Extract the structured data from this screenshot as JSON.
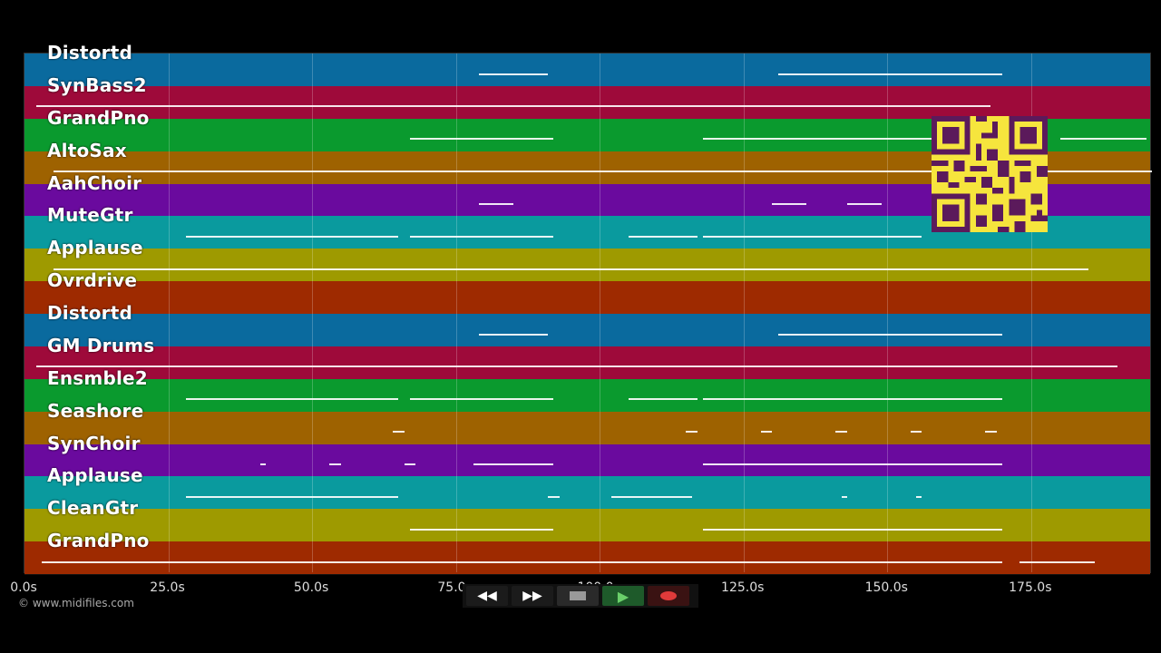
{
  "tracks": [
    {
      "name": "Distortd",
      "color": "#0a6a9e"
    },
    {
      "name": "SynBass2",
      "color": "#9e0a3a"
    },
    {
      "name": "GrandPno",
      "color": "#0a9a2e"
    },
    {
      "name": "AltoSax",
      "color": "#9e6200"
    },
    {
      "name": "AahChoir",
      "color": "#6a0a9e"
    },
    {
      "name": "MuteGtr",
      "color": "#0a9a9e"
    },
    {
      "name": "Applause",
      "color": "#9e9a00"
    },
    {
      "name": "Ovrdrive",
      "color": "#9e2a00"
    },
    {
      "name": "Distortd",
      "color": "#0a6a9e"
    },
    {
      "name": "GM Drums",
      "color": "#9e0a3a"
    },
    {
      "name": "Ensmble2",
      "color": "#0a9a2e"
    },
    {
      "name": "Seashore",
      "color": "#9e6200"
    },
    {
      "name": "SynChoir",
      "color": "#6a0a9e"
    },
    {
      "name": "Applause",
      "color": "#0a9a9e"
    },
    {
      "name": "CleanGtr",
      "color": "#9e9a00"
    },
    {
      "name": "GrandPno",
      "color": "#9e2a00"
    }
  ],
  "time_axis": {
    "ticks": [
      {
        "label": "0.0s",
        "t": 0
      },
      {
        "label": "25.0s",
        "t": 25
      },
      {
        "label": "50.0s",
        "t": 50
      },
      {
        "label": "75.0s",
        "t": 75
      },
      {
        "label": "100.0s",
        "t": 100
      },
      {
        "label": "125.0s",
        "t": 125
      },
      {
        "label": "150.0s",
        "t": 150
      },
      {
        "label": "175.0s",
        "t": 175
      }
    ],
    "max_seconds": 196
  },
  "credit": "© www.midifiles.com",
  "transport": {
    "rewind_icon": "rewind-icon",
    "forward_icon": "fast-forward-icon",
    "stop_icon": "stop-icon",
    "play_icon": "play-icon",
    "record_icon": "record-icon"
  },
  "qr_icon": "qr-code-icon",
  "notes": [
    {
      "track": 0,
      "segments": [
        [
          79,
          91
        ],
        [
          131,
          170
        ]
      ]
    },
    {
      "track": 1,
      "segments": [
        [
          2,
          168
        ]
      ]
    },
    {
      "track": 2,
      "segments": [
        [
          67,
          92
        ],
        [
          118,
          170
        ],
        [
          180,
          195
        ]
      ]
    },
    {
      "track": 3,
      "segments": [
        [
          5,
          196
        ]
      ]
    },
    {
      "track": 4,
      "segments": [
        [
          79,
          85
        ],
        [
          130,
          136
        ],
        [
          143,
          149
        ]
      ]
    },
    {
      "track": 5,
      "segments": [
        [
          28,
          65
        ],
        [
          67,
          92
        ],
        [
          105,
          117
        ],
        [
          118,
          156
        ]
      ]
    },
    {
      "track": 6,
      "segments": [
        [
          5,
          185
        ]
      ]
    },
    {
      "track": 8,
      "segments": [
        [
          79,
          91
        ],
        [
          131,
          170
        ]
      ]
    },
    {
      "track": 9,
      "segments": [
        [
          2,
          190
        ]
      ]
    },
    {
      "track": 10,
      "segments": [
        [
          28,
          65
        ],
        [
          67,
          92
        ],
        [
          105,
          117
        ],
        [
          118,
          170
        ]
      ]
    },
    {
      "track": 11,
      "segments": [
        [
          64,
          66
        ],
        [
          115,
          117
        ],
        [
          128,
          130
        ],
        [
          141,
          143
        ],
        [
          154,
          156
        ],
        [
          167,
          169
        ]
      ]
    },
    {
      "track": 12,
      "segments": [
        [
          41,
          42
        ],
        [
          53,
          55
        ],
        [
          66,
          68
        ],
        [
          78,
          92
        ],
        [
          118,
          170
        ]
      ]
    },
    {
      "track": 13,
      "segments": [
        [
          28,
          65
        ],
        [
          91,
          93
        ],
        [
          102,
          116
        ],
        [
          142,
          143
        ],
        [
          155,
          156
        ]
      ]
    },
    {
      "track": 14,
      "segments": [
        [
          67,
          92
        ],
        [
          118,
          170
        ]
      ]
    },
    {
      "track": 15,
      "segments": [
        [
          3,
          170
        ],
        [
          173,
          186
        ]
      ]
    }
  ]
}
